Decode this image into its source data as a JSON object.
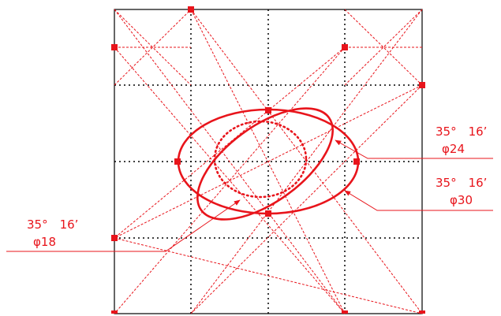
{
  "labels": {
    "phi24": {
      "angle": "35°　16’",
      "diameter": "φ24"
    },
    "phi30": {
      "angle": "35°　16’",
      "diameter": "φ30"
    },
    "phi18": {
      "angle": "35°　16’",
      "diameter": "φ18"
    }
  },
  "colors": {
    "accent": "#e8141b",
    "frame": "#000000",
    "grid": "#000000"
  }
}
